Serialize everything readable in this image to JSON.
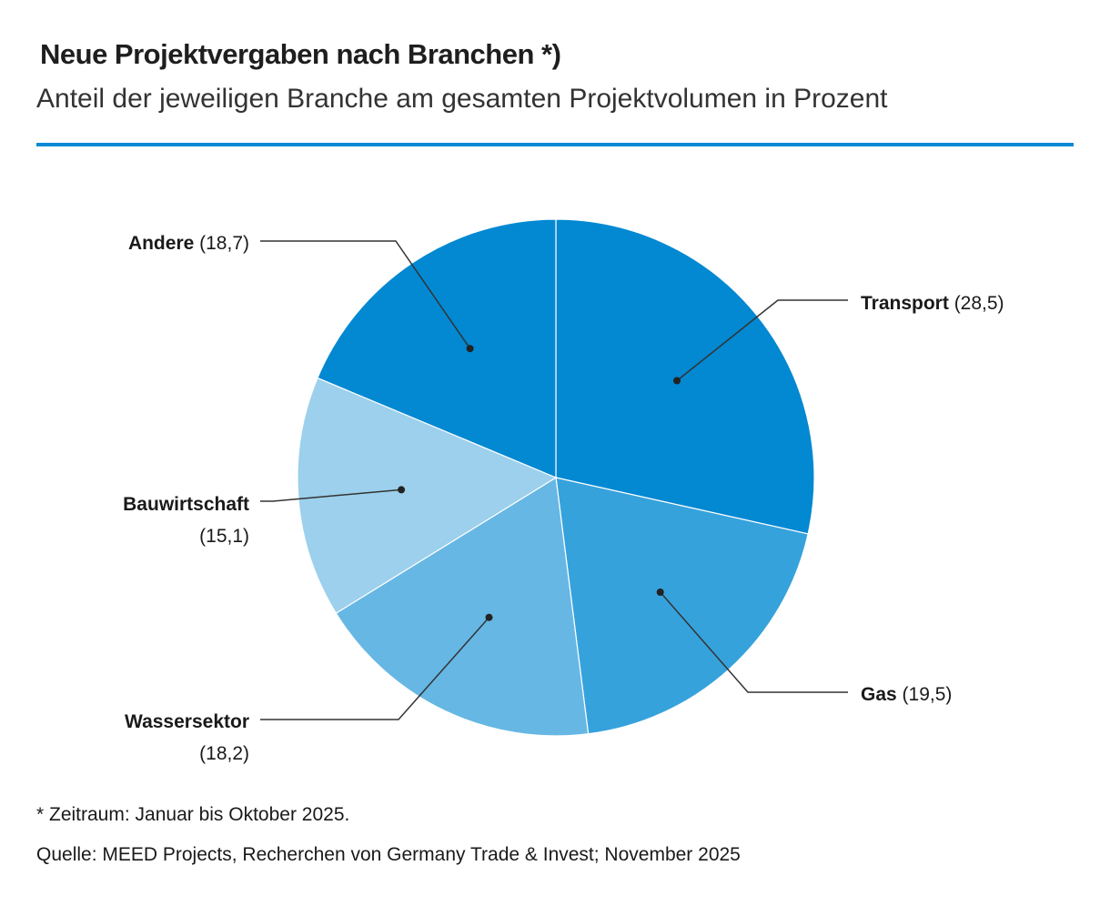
{
  "header": {
    "title": "Neue Projektvergaben nach Branchen *)",
    "subtitle": "Anteil der jeweiligen Branche am gesamten Projektvolumen in Prozent"
  },
  "footer": {
    "footnote": "* Zeitraum: Januar bis Oktober 2025.",
    "source": "Quelle: MEED Projects, Recherchen von Germany Trade & Invest; November 2025"
  },
  "chart_data": {
    "type": "pie",
    "start_angle": "12 o'clock, clockwise",
    "slices": [
      {
        "name": "Transport",
        "value": 28.5,
        "value_label": "(28,5)",
        "color": "#0388d2"
      },
      {
        "name": "Gas",
        "value": 19.5,
        "value_label": "(19,5)",
        "color": "#36a2dc"
      },
      {
        "name": "Wassersektor",
        "value": 18.2,
        "value_label": "(18,2)",
        "color": "#66b7e4"
      },
      {
        "name": "Bauwirtschaft",
        "value": 15.1,
        "value_label": "(15,1)",
        "color": "#9cd0ec"
      },
      {
        "name": "Andere",
        "value": 18.7,
        "value_label": "(18,7)",
        "color": "#0388d2"
      }
    ]
  }
}
